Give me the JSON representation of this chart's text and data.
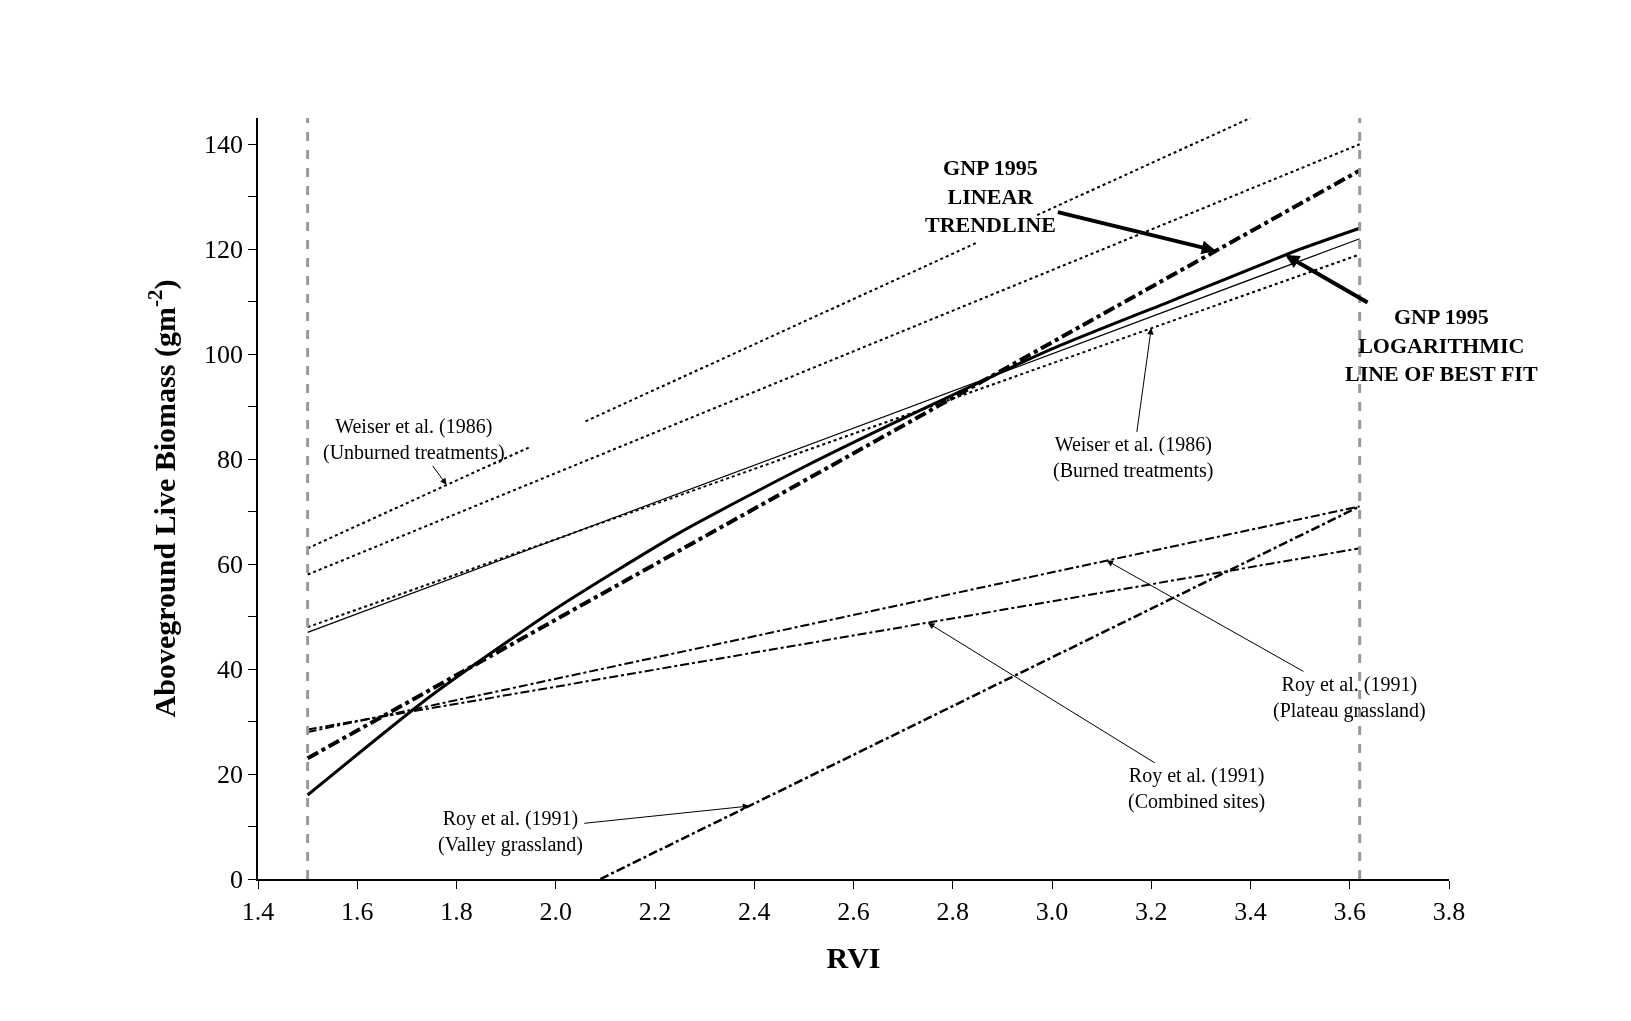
{
  "chart_data": {
    "type": "line",
    "xlabel": "RVI",
    "ylabel": "Aboveground Live Biomass (gm$^{-2}$)",
    "xlim": [
      1.4,
      3.8
    ],
    "ylim": [
      0,
      145
    ],
    "xticks": [
      {
        "value": 1.4,
        "label": "1.4"
      },
      {
        "value": 1.6,
        "label": "1.6"
      },
      {
        "value": 1.8,
        "label": "1.8"
      },
      {
        "value": 2.0,
        "label": "2.0"
      },
      {
        "value": 2.2,
        "label": "2.2"
      },
      {
        "value": 2.4,
        "label": "2.4"
      },
      {
        "value": 2.6,
        "label": "2.6"
      },
      {
        "value": 2.8,
        "label": "2.8"
      },
      {
        "value": 3.0,
        "label": "3.0"
      },
      {
        "value": 3.2,
        "label": "3.2"
      },
      {
        "value": 3.4,
        "label": "3.4"
      },
      {
        "value": 3.6,
        "label": "3.6"
      },
      {
        "value": 3.8,
        "label": "3.8"
      }
    ],
    "yticks": [
      0,
      {
        "value": 10,
        "label": null
      },
      20,
      {
        "value": 30,
        "label": null
      },
      40,
      {
        "value": 50,
        "label": null
      },
      60,
      {
        "value": 70,
        "label": null
      },
      80,
      {
        "value": 90,
        "label": null
      },
      100,
      {
        "value": 110,
        "label": null
      },
      120,
      {
        "value": 130,
        "label": null
      },
      140
    ],
    "grid": false,
    "series": [
      {
        "color": "#000000",
        "line_style": "dotted",
        "x": [
          1.5,
          1.95,
          2.0,
          2.06,
          2.85,
          2.91,
          2.97,
          3.4
        ],
        "values": [
          63,
          82.4,
          null,
          87.2,
          121.3,
          null,
          126.5,
          145
        ]
      },
      {
        "color": "#000000",
        "line_style": "dotted",
        "x": [
          1.5,
          3.62
        ],
        "values": [
          58,
          140
        ]
      },
      {
        "color": "#000000",
        "line_style": "solid",
        "x": [
          1.5,
          3.62
        ],
        "values": [
          47,
          122
        ]
      },
      {
        "color": "#000000",
        "line_style": "dotted",
        "x": [
          1.5,
          3.62
        ],
        "values": [
          48,
          119
        ]
      },
      {
        "color": "#000000",
        "line_style": "dashed",
        "x": [
          1.5,
          3.62
        ],
        "values": [
          23,
          135
        ]
      },
      {
        "color": "#000000",
        "line_style": "solid",
        "x": [
          1.5,
          1.75,
          2.0,
          2.25,
          2.5,
          2.75,
          3.0,
          3.25,
          3.5,
          3.62
        ],
        "values": [
          16,
          35,
          51.5,
          66,
          78.5,
          90,
          101,
          110.5,
          120,
          124
        ]
      },
      {
        "color": "#000000",
        "line_style": "dashed",
        "x": [
          1.5,
          3.62
        ],
        "values": [
          28,
          71
        ]
      },
      {
        "color": "#000000",
        "line_style": "dashed",
        "x": [
          1.5,
          3.62
        ],
        "values": [
          28.5,
          63
        ]
      },
      {
        "color": "#000000",
        "line_style": "dashed",
        "x": [
          2.09,
          3.62
        ],
        "values": [
          0,
          71
        ]
      }
    ],
    "ref_lines": [
      {
        "axis": "x",
        "value": 1.5,
        "color": "#999999",
        "line_style": "dashed"
      },
      {
        "axis": "x",
        "value": 3.62,
        "color": "#999999",
        "line_style": "dashed"
      }
    ],
    "annotations": [
      {
        "text": "GNP 1995\nLINEAR\nTRENDLINE",
        "x": 3.33,
        "y": 119.7
      },
      {
        "text": "GNP 1995\nLOGARITHMIC\nLINE OF BEST FIT",
        "x": 3.47,
        "y": 118.9
      },
      {
        "text": "Weiser et al. (1986)\n(Unburned treatments)",
        "x": 1.78,
        "y": 75.1
      },
      {
        "text": "Weiser et al. (1986)\n(Burned treatments)",
        "x": 3.2,
        "y": 105
      },
      {
        "text": "Roy et al. (1991)\n(Plateau grassland)",
        "x": 3.11,
        "y": 60.7
      },
      {
        "text": "Roy et al. (1991)\n(Combined sites)",
        "x": 2.75,
        "y": 48.8
      },
      {
        "text": "Roy et al. (1991)\n(Valley grassland)",
        "x": 2.39,
        "y": 13.9
      }
    ]
  }
}
